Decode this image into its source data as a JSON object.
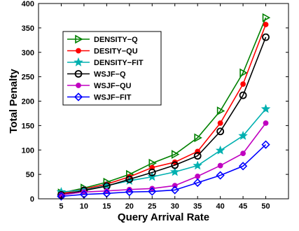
{
  "chart_data": {
    "type": "line",
    "xlabel": "Query Arrival Rate",
    "ylabel": "Total Penalty",
    "x": [
      5,
      10,
      15,
      20,
      25,
      30,
      35,
      40,
      45,
      50
    ],
    "xticks": [
      "5",
      "10",
      "15",
      "20",
      "25",
      "30",
      "35",
      "40",
      "45",
      "50"
    ],
    "yticks": [
      "0",
      "50",
      "100",
      "150",
      "200",
      "250",
      "300",
      "350",
      "400"
    ],
    "xlim": [
      0,
      55
    ],
    "ylim": [
      0,
      400
    ],
    "grid": false,
    "legend_position": "upper-left",
    "series": [
      {
        "name": "DENSITY−Q",
        "color": "#008000",
        "marker": "triangle-right",
        "values": [
          12,
          22,
          34,
          50,
          73,
          91,
          125,
          180,
          258,
          371
        ]
      },
      {
        "name": "DESITY−QU",
        "color": "#ff0000",
        "marker": "dot",
        "values": [
          10,
          20,
          30,
          45,
          64,
          75,
          97,
          155,
          235,
          357
        ]
      },
      {
        "name": "DENSITY−FIT",
        "color": "#00b0b0",
        "marker": "star",
        "values": [
          14,
          18,
          27,
          37,
          45,
          55,
          68,
          99,
          129,
          184
        ]
      },
      {
        "name": "WSJF−Q",
        "color": "#000000",
        "marker": "circle",
        "values": [
          8,
          17,
          26,
          40,
          54,
          69,
          88,
          138,
          212,
          331
        ]
      },
      {
        "name": "WSJF−QU",
        "color": "#c000c0",
        "marker": "dot",
        "values": [
          8,
          14,
          16,
          19,
          21,
          27,
          46,
          68,
          93,
          155
        ]
      },
      {
        "name": "WSJF−FIT",
        "color": "#0000ff",
        "marker": "diamond",
        "values": [
          5,
          9,
          11,
          14,
          15,
          18,
          33,
          48,
          67,
          111
        ]
      }
    ]
  }
}
